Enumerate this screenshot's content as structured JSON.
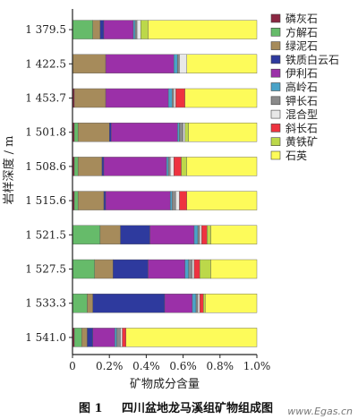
{
  "chart_data": {
    "type": "bar",
    "orientation": "horizontal",
    "stacked": true,
    "title": "",
    "caption_number": "图 1",
    "caption_text": "四川盆地龙马溪组矿物组成图",
    "xlabel": "矿物成分含量",
    "ylabel": "岩样深度 / m",
    "xlim": [
      0,
      1.0
    ],
    "xticks": [
      "0",
      "0.2%",
      "0.4%",
      "0.6%",
      "0.8%",
      "1.0%"
    ],
    "categories": [
      "1 379.5",
      "1 422.5",
      "1 453.7",
      "1 501.8",
      "1 508.6",
      "1 515.6",
      "1 521.5",
      "1 527.5",
      "1 533.3",
      "1 541.0"
    ],
    "legend_position": "right",
    "series": [
      {
        "name": "磷灰石",
        "color": "#8b2742",
        "values": [
          0.0,
          0.0,
          0.01,
          0.01,
          0.01,
          0.01,
          0.0,
          0.0,
          0.0,
          0.01
        ]
      },
      {
        "name": "方解石",
        "color": "#66bb6a",
        "values": [
          0.11,
          0.0,
          0.0,
          0.02,
          0.02,
          0.02,
          0.15,
          0.12,
          0.08,
          0.04
        ]
      },
      {
        "name": "绿泥石",
        "color": "#a68b5b",
        "values": [
          0.04,
          0.18,
          0.17,
          0.17,
          0.13,
          0.14,
          0.11,
          0.1,
          0.03,
          0.03
        ]
      },
      {
        "name": "铁质白云石",
        "color": "#2e3a9e",
        "values": [
          0.02,
          0.0,
          0.0,
          0.01,
          0.01,
          0.01,
          0.16,
          0.19,
          0.39,
          0.03
        ]
      },
      {
        "name": "伊利石",
        "color": "#9b30a8",
        "values": [
          0.16,
          0.37,
          0.34,
          0.36,
          0.34,
          0.35,
          0.24,
          0.2,
          0.15,
          0.12
        ]
      },
      {
        "name": "高岭石",
        "color": "#4aa3c8",
        "values": [
          0.01,
          0.02,
          0.02,
          0.01,
          0.01,
          0.01,
          0.02,
          0.02,
          0.02,
          0.01
        ]
      },
      {
        "name": "钾长石",
        "color": "#8a8a8a",
        "values": [
          0.01,
          0.01,
          0.01,
          0.02,
          0.01,
          0.02,
          0.01,
          0.02,
          0.01,
          0.02
        ]
      },
      {
        "name": "混合型",
        "color": "#e8e8e8",
        "values": [
          0.02,
          0.04,
          0.01,
          0.01,
          0.02,
          0.02,
          0.01,
          0.01,
          0.01,
          0.01
        ]
      },
      {
        "name": "斜长石",
        "color": "#ee3340",
        "values": [
          0.0,
          0.0,
          0.05,
          0.0,
          0.04,
          0.04,
          0.03,
          0.03,
          0.02,
          0.02
        ]
      },
      {
        "name": "黄铁矿",
        "color": "#bcd84a",
        "values": [
          0.04,
          0.0,
          0.0,
          0.02,
          0.03,
          0.0,
          0.02,
          0.06,
          0.01,
          0.0
        ]
      },
      {
        "name": "石英",
        "color": "#fdfb5a",
        "values": [
          0.59,
          0.38,
          0.39,
          0.37,
          0.38,
          0.38,
          0.25,
          0.25,
          0.28,
          0.71
        ]
      }
    ],
    "grid": false
  },
  "watermark": "www.Egas.cn"
}
